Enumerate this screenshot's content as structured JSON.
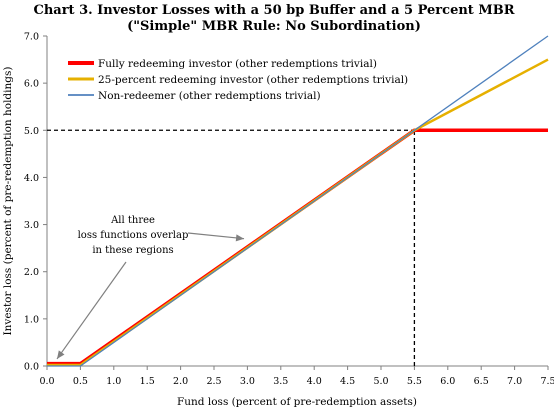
{
  "chart_data": {
    "type": "line",
    "title_lines": [
      "Chart 3. Investor Losses with a 50 bp Buffer and a 5 Percent MBR",
      "(\"Simple\" MBR Rule:  No Subordination)"
    ],
    "xlabel": "Fund loss (percent of pre-redemption assets)",
    "ylabel": "Investor loss (percent of pre-redemption holdings)",
    "xlim": [
      0,
      7.5
    ],
    "ylim": [
      0,
      7.0
    ],
    "x_ticks": [
      "0.0",
      "0.5",
      "1.0",
      "1.5",
      "2.0",
      "2.5",
      "3.0",
      "3.5",
      "4.0",
      "4.5",
      "5.0",
      "5.5",
      "6.0",
      "6.5",
      "7.0",
      "7.5"
    ],
    "y_ticks": [
      "0.0",
      "1.0",
      "2.0",
      "3.0",
      "4.0",
      "5.0",
      "6.0",
      "7.0"
    ],
    "grid": false,
    "legend_position": "top-left",
    "series": [
      {
        "name": "Fully redeeming investor (other redemptions trivial)",
        "color": "#ff0000",
        "width": 3.5,
        "points": [
          [
            0,
            0.05
          ],
          [
            0.5,
            0.05
          ],
          [
            5.5,
            5.0
          ],
          [
            7.5,
            5.0
          ]
        ]
      },
      {
        "name": "25-percent redeeming investor (other redemptions trivial)",
        "color": "#e6b000",
        "width": 2.5,
        "points": [
          [
            0,
            0.02
          ],
          [
            0.5,
            0.02
          ],
          [
            5.5,
            5.0
          ],
          [
            7.5,
            6.5
          ]
        ]
      },
      {
        "name": "Non-redeemer (other redemptions trivial)",
        "color": "#4f81bd",
        "width": 1.3,
        "points": [
          [
            0,
            0.0
          ],
          [
            0.5,
            0.0
          ],
          [
            5.5,
            5.0
          ],
          [
            7.5,
            7.0
          ]
        ]
      }
    ],
    "reference_lines": [
      {
        "from": [
          0,
          5.0
        ],
        "to": [
          5.5,
          5.0
        ]
      },
      {
        "from": [
          5.5,
          0
        ],
        "to": [
          5.5,
          5.0
        ]
      }
    ],
    "annotation": {
      "lines": [
        "All three",
        "loss functions overlap",
        "in these regions"
      ],
      "arrow_targets": [
        [
          0.15,
          0.15
        ],
        [
          2.95,
          2.7
        ]
      ]
    }
  }
}
